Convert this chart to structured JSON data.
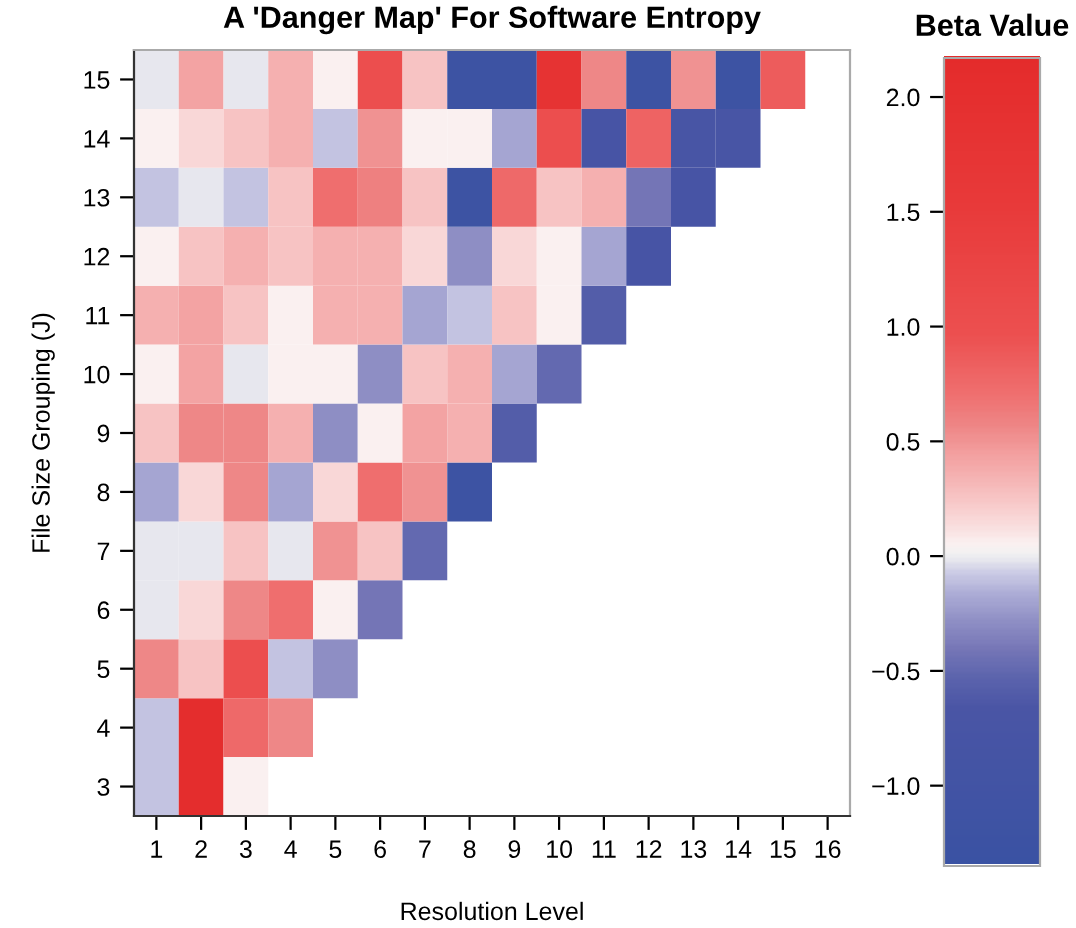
{
  "chart_data": {
    "type": "heatmap",
    "title": "A 'Danger Map' For Software Entropy",
    "xlabel": "Resolution Level",
    "ylabel": "File Size Grouping (J)",
    "clabel": "Beta Value",
    "categories": [
      "1",
      "2",
      "3",
      "4",
      "5",
      "6",
      "7",
      "8",
      "9",
      "10",
      "11",
      "12",
      "13",
      "14",
      "15",
      "16"
    ],
    "y_categories": [
      "15",
      "14",
      "13",
      "12",
      "11",
      "10",
      "9",
      "8",
      "7",
      "6",
      "5",
      "4",
      "3"
    ],
    "cells": [
      [
        -0.03,
        0.42,
        -0.03,
        0.35,
        0.05,
        1.0,
        0.25,
        -1.2,
        -1.2,
        1.8,
        0.55,
        -1.2,
        0.5,
        -1.2,
        0.85,
        null
      ],
      [
        0.05,
        0.15,
        0.25,
        0.35,
        -0.1,
        0.5,
        0.05,
        0.05,
        -0.2,
        1.0,
        -0.8,
        0.8,
        -0.75,
        -0.75,
        null,
        null
      ],
      [
        -0.1,
        -0.03,
        -0.1,
        0.25,
        0.7,
        0.6,
        0.25,
        -1.2,
        0.75,
        0.25,
        0.35,
        -0.42,
        -0.8,
        null,
        null,
        null
      ],
      [
        0.05,
        0.25,
        0.35,
        0.25,
        0.35,
        0.35,
        0.15,
        -0.3,
        0.15,
        0.05,
        -0.2,
        -0.8,
        null,
        null,
        null,
        null
      ],
      [
        0.35,
        0.42,
        0.25,
        0.05,
        0.35,
        0.35,
        -0.2,
        -0.1,
        0.25,
        0.05,
        -0.6,
        null,
        null,
        null,
        null,
        null
      ],
      [
        0.05,
        0.42,
        -0.03,
        0.05,
        0.05,
        -0.3,
        0.25,
        0.35,
        -0.2,
        -0.5,
        null,
        null,
        null,
        null,
        null,
        null
      ],
      [
        0.25,
        0.55,
        0.55,
        0.35,
        -0.3,
        0.05,
        0.42,
        0.35,
        -0.6,
        null,
        null,
        null,
        null,
        null,
        null,
        null
      ],
      [
        -0.2,
        0.15,
        0.55,
        -0.2,
        0.15,
        0.7,
        0.5,
        -1.2,
        null,
        null,
        null,
        null,
        null,
        null,
        null,
        null
      ],
      [
        -0.03,
        -0.03,
        0.25,
        -0.03,
        0.5,
        0.25,
        -0.5,
        null,
        null,
        null,
        null,
        null,
        null,
        null,
        null,
        null
      ],
      [
        -0.03,
        0.15,
        0.55,
        0.7,
        0.05,
        -0.42,
        null,
        null,
        null,
        null,
        null,
        null,
        null,
        null,
        null,
        null
      ],
      [
        0.55,
        0.25,
        1.0,
        -0.1,
        -0.3,
        null,
        null,
        null,
        null,
        null,
        null,
        null,
        null,
        null,
        null,
        null
      ],
      [
        -0.1,
        2.1,
        0.75,
        0.55,
        null,
        null,
        null,
        null,
        null,
        null,
        null,
        null,
        null,
        null,
        null,
        null
      ],
      [
        -0.1,
        2.1,
        0.05,
        null,
        null,
        null,
        null,
        null,
        null,
        null,
        null,
        null,
        null,
        null,
        null,
        null
      ]
    ],
    "clim": [
      -1.35,
      2.17
    ],
    "cticks": [
      {
        "value": -1.0,
        "label": "−1.0"
      },
      {
        "value": -0.5,
        "label": "−0.5"
      },
      {
        "value": 0.0,
        "label": "0.0"
      },
      {
        "value": 0.5,
        "label": "0.5"
      },
      {
        "value": 1.0,
        "label": "1.0"
      },
      {
        "value": 1.5,
        "label": "1.5"
      },
      {
        "value": 2.0,
        "label": "2.0"
      }
    ],
    "grid": false
  }
}
